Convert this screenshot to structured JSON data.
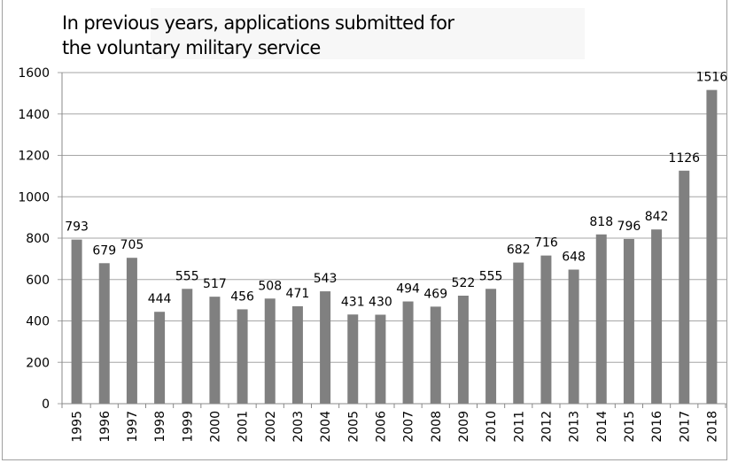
{
  "chart_data": {
    "type": "bar",
    "title": "In previous years, applications submitted for the voluntary military service",
    "title_lines": [
      "In previous years, applications submitted for",
      "the voluntary military service"
    ],
    "categories": [
      "1995",
      "1996",
      "1997",
      "1998",
      "1999",
      "2000",
      "2001",
      "2002",
      "2003",
      "2004",
      "2005",
      "2006",
      "2007",
      "2008",
      "2009",
      "2010",
      "2011",
      "2012",
      "2013",
      "2014",
      "2015",
      "2016",
      "2017",
      "2018"
    ],
    "values": [
      793,
      679,
      705,
      444,
      555,
      517,
      456,
      508,
      471,
      543,
      431,
      430,
      494,
      469,
      522,
      555,
      682,
      716,
      648,
      818,
      796,
      842,
      1126,
      1516
    ],
    "xlabel": "",
    "ylabel": "",
    "ylim": [
      0,
      1600
    ],
    "yticks": [
      0,
      200,
      400,
      600,
      800,
      1000,
      1200,
      1400,
      1600
    ],
    "grid": true,
    "data_labels": true,
    "bar_color": "#808080",
    "grid_color": "#a6a6a6"
  }
}
